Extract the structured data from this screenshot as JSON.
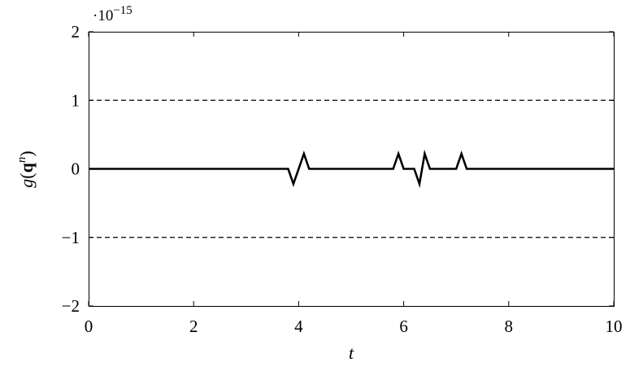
{
  "chart_data": {
    "type": "line",
    "title": "",
    "xlabel": "t",
    "ylabel": {
      "func": "g",
      "open": "(",
      "vec": "q",
      "sup": "n",
      "close": ")"
    },
    "scale_note": {
      "base": "·10",
      "exp": "−15"
    },
    "xlim": [
      0,
      10
    ],
    "ylim": [
      -2,
      2
    ],
    "xticks": [
      0,
      2,
      4,
      6,
      8,
      10
    ],
    "yticks": [
      -2,
      -1,
      0,
      1,
      2
    ],
    "ytick_labels": [
      "−2",
      "−1",
      "0",
      "1",
      "2"
    ],
    "grid": false,
    "reference_lines": [
      {
        "y": 1,
        "style": "dashed"
      },
      {
        "y": -1,
        "style": "dashed"
      }
    ],
    "series": [
      {
        "color": "#000000",
        "x": [
          0,
          3.8,
          3.9,
          4.1,
          4.2,
          5.8,
          5.9,
          6.0,
          6.2,
          6.3,
          6.4,
          6.5,
          7.0,
          7.1,
          7.2,
          10
        ],
        "y": [
          0,
          0,
          -0.22,
          0.22,
          0,
          0,
          0.22,
          0,
          0,
          -0.22,
          0.22,
          0,
          0,
          0.22,
          0,
          0
        ]
      }
    ]
  }
}
